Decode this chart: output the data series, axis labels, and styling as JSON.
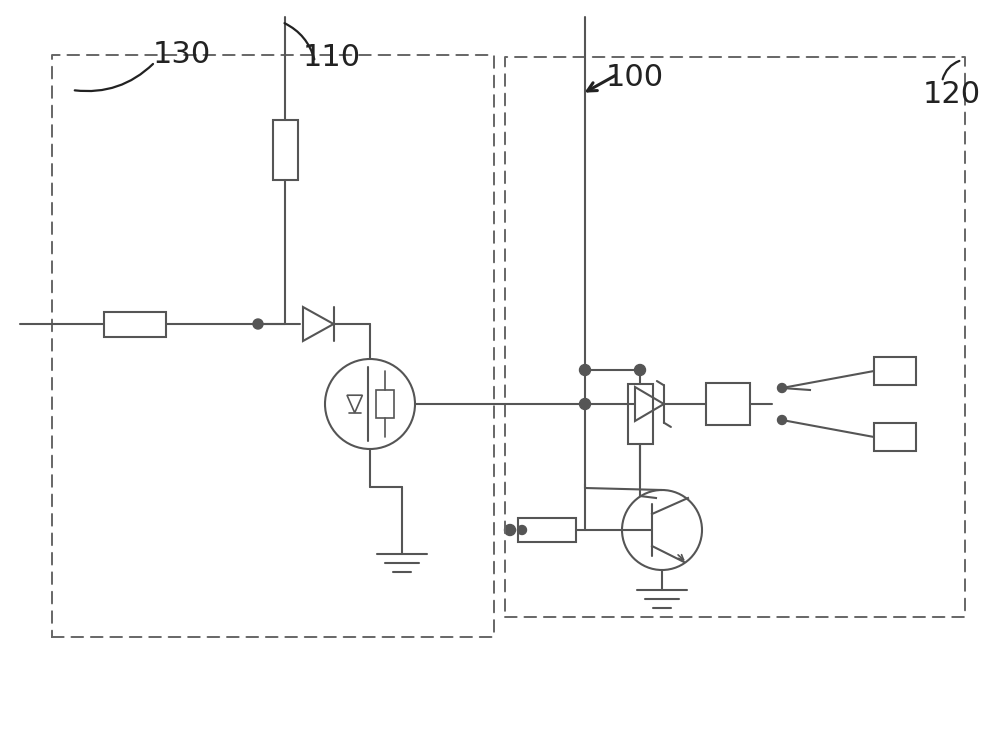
{
  "bg_color": "#ffffff",
  "line_color": "#555555",
  "dashed_color": "#666666",
  "label_130": "130",
  "label_110": "110",
  "label_100": "100",
  "label_120": "120",
  "fig_width": 10.0,
  "fig_height": 7.42
}
